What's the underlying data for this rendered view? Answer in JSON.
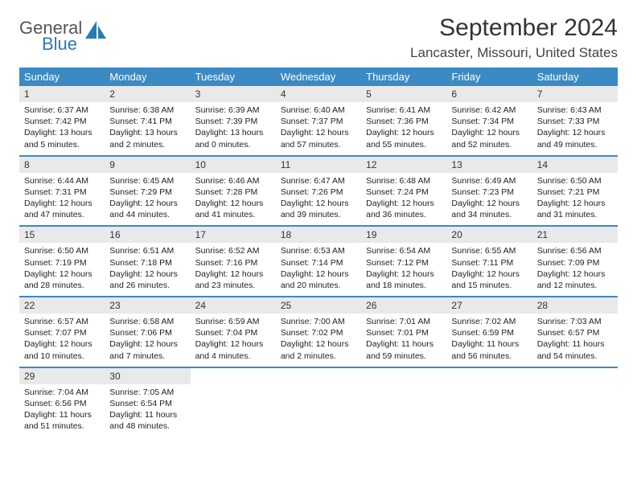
{
  "logo": {
    "text_general": "General",
    "text_blue": "Blue",
    "accent_color": "#2a7ab8",
    "text_color": "#555"
  },
  "header": {
    "month_title": "September 2024",
    "location": "Lancaster, Missouri, United States"
  },
  "colors": {
    "header_bg": "#3b8ac4",
    "header_fg": "#ffffff",
    "daynum_bg": "#e9e9e9",
    "row_border": "#3b8ac4"
  },
  "weekdays": [
    "Sunday",
    "Monday",
    "Tuesday",
    "Wednesday",
    "Thursday",
    "Friday",
    "Saturday"
  ],
  "days": [
    {
      "n": "1",
      "sunrise": "Sunrise: 6:37 AM",
      "sunset": "Sunset: 7:42 PM",
      "daylight": "Daylight: 13 hours and 5 minutes."
    },
    {
      "n": "2",
      "sunrise": "Sunrise: 6:38 AM",
      "sunset": "Sunset: 7:41 PM",
      "daylight": "Daylight: 13 hours and 2 minutes."
    },
    {
      "n": "3",
      "sunrise": "Sunrise: 6:39 AM",
      "sunset": "Sunset: 7:39 PM",
      "daylight": "Daylight: 13 hours and 0 minutes."
    },
    {
      "n": "4",
      "sunrise": "Sunrise: 6:40 AM",
      "sunset": "Sunset: 7:37 PM",
      "daylight": "Daylight: 12 hours and 57 minutes."
    },
    {
      "n": "5",
      "sunrise": "Sunrise: 6:41 AM",
      "sunset": "Sunset: 7:36 PM",
      "daylight": "Daylight: 12 hours and 55 minutes."
    },
    {
      "n": "6",
      "sunrise": "Sunrise: 6:42 AM",
      "sunset": "Sunset: 7:34 PM",
      "daylight": "Daylight: 12 hours and 52 minutes."
    },
    {
      "n": "7",
      "sunrise": "Sunrise: 6:43 AM",
      "sunset": "Sunset: 7:33 PM",
      "daylight": "Daylight: 12 hours and 49 minutes."
    },
    {
      "n": "8",
      "sunrise": "Sunrise: 6:44 AM",
      "sunset": "Sunset: 7:31 PM",
      "daylight": "Daylight: 12 hours and 47 minutes."
    },
    {
      "n": "9",
      "sunrise": "Sunrise: 6:45 AM",
      "sunset": "Sunset: 7:29 PM",
      "daylight": "Daylight: 12 hours and 44 minutes."
    },
    {
      "n": "10",
      "sunrise": "Sunrise: 6:46 AM",
      "sunset": "Sunset: 7:28 PM",
      "daylight": "Daylight: 12 hours and 41 minutes."
    },
    {
      "n": "11",
      "sunrise": "Sunrise: 6:47 AM",
      "sunset": "Sunset: 7:26 PM",
      "daylight": "Daylight: 12 hours and 39 minutes."
    },
    {
      "n": "12",
      "sunrise": "Sunrise: 6:48 AM",
      "sunset": "Sunset: 7:24 PM",
      "daylight": "Daylight: 12 hours and 36 minutes."
    },
    {
      "n": "13",
      "sunrise": "Sunrise: 6:49 AM",
      "sunset": "Sunset: 7:23 PM",
      "daylight": "Daylight: 12 hours and 34 minutes."
    },
    {
      "n": "14",
      "sunrise": "Sunrise: 6:50 AM",
      "sunset": "Sunset: 7:21 PM",
      "daylight": "Daylight: 12 hours and 31 minutes."
    },
    {
      "n": "15",
      "sunrise": "Sunrise: 6:50 AM",
      "sunset": "Sunset: 7:19 PM",
      "daylight": "Daylight: 12 hours and 28 minutes."
    },
    {
      "n": "16",
      "sunrise": "Sunrise: 6:51 AM",
      "sunset": "Sunset: 7:18 PM",
      "daylight": "Daylight: 12 hours and 26 minutes."
    },
    {
      "n": "17",
      "sunrise": "Sunrise: 6:52 AM",
      "sunset": "Sunset: 7:16 PM",
      "daylight": "Daylight: 12 hours and 23 minutes."
    },
    {
      "n": "18",
      "sunrise": "Sunrise: 6:53 AM",
      "sunset": "Sunset: 7:14 PM",
      "daylight": "Daylight: 12 hours and 20 minutes."
    },
    {
      "n": "19",
      "sunrise": "Sunrise: 6:54 AM",
      "sunset": "Sunset: 7:12 PM",
      "daylight": "Daylight: 12 hours and 18 minutes."
    },
    {
      "n": "20",
      "sunrise": "Sunrise: 6:55 AM",
      "sunset": "Sunset: 7:11 PM",
      "daylight": "Daylight: 12 hours and 15 minutes."
    },
    {
      "n": "21",
      "sunrise": "Sunrise: 6:56 AM",
      "sunset": "Sunset: 7:09 PM",
      "daylight": "Daylight: 12 hours and 12 minutes."
    },
    {
      "n": "22",
      "sunrise": "Sunrise: 6:57 AM",
      "sunset": "Sunset: 7:07 PM",
      "daylight": "Daylight: 12 hours and 10 minutes."
    },
    {
      "n": "23",
      "sunrise": "Sunrise: 6:58 AM",
      "sunset": "Sunset: 7:06 PM",
      "daylight": "Daylight: 12 hours and 7 minutes."
    },
    {
      "n": "24",
      "sunrise": "Sunrise: 6:59 AM",
      "sunset": "Sunset: 7:04 PM",
      "daylight": "Daylight: 12 hours and 4 minutes."
    },
    {
      "n": "25",
      "sunrise": "Sunrise: 7:00 AM",
      "sunset": "Sunset: 7:02 PM",
      "daylight": "Daylight: 12 hours and 2 minutes."
    },
    {
      "n": "26",
      "sunrise": "Sunrise: 7:01 AM",
      "sunset": "Sunset: 7:01 PM",
      "daylight": "Daylight: 11 hours and 59 minutes."
    },
    {
      "n": "27",
      "sunrise": "Sunrise: 7:02 AM",
      "sunset": "Sunset: 6:59 PM",
      "daylight": "Daylight: 11 hours and 56 minutes."
    },
    {
      "n": "28",
      "sunrise": "Sunrise: 7:03 AM",
      "sunset": "Sunset: 6:57 PM",
      "daylight": "Daylight: 11 hours and 54 minutes."
    },
    {
      "n": "29",
      "sunrise": "Sunrise: 7:04 AM",
      "sunset": "Sunset: 6:56 PM",
      "daylight": "Daylight: 11 hours and 51 minutes."
    },
    {
      "n": "30",
      "sunrise": "Sunrise: 7:05 AM",
      "sunset": "Sunset: 6:54 PM",
      "daylight": "Daylight: 11 hours and 48 minutes."
    }
  ],
  "layout": {
    "start_weekday": 0,
    "total_cells": 35
  }
}
